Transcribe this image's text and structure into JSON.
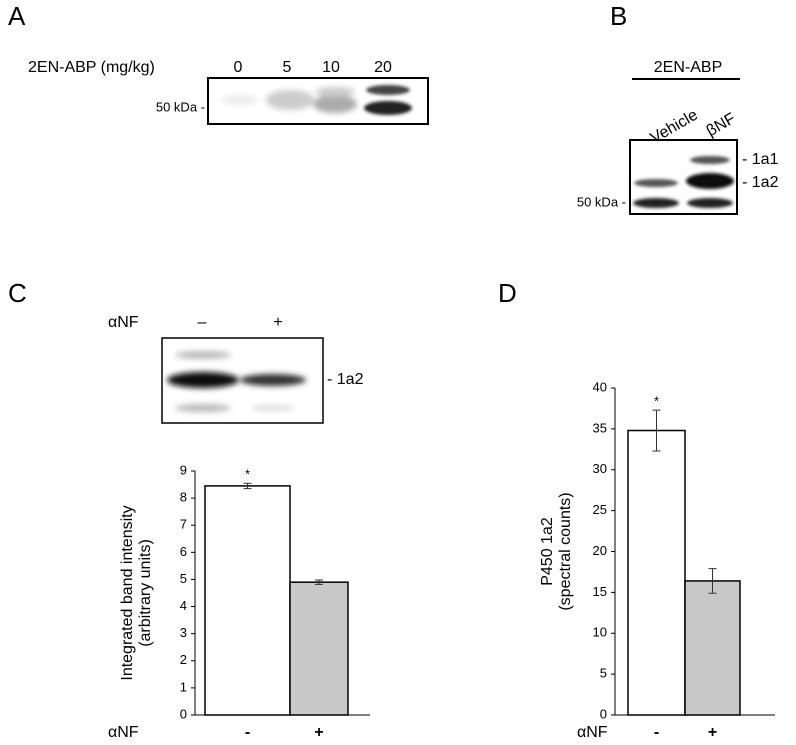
{
  "panel_a": {
    "letter": "A",
    "label": "2EN-ABP  (mg/kg)",
    "lanes": [
      "0",
      "5",
      "10",
      "20"
    ],
    "marker": "50 kDa -"
  },
  "panel_b": {
    "letter": "B",
    "label": "2EN-ABP",
    "lanes": [
      "Vehicle",
      "βNF"
    ],
    "bands": [
      "- 1a1",
      "- 1a2"
    ],
    "marker": "50 kDa -"
  },
  "panel_c": {
    "letter": "C",
    "treatment": "αNF",
    "lanes": [
      "–",
      "+"
    ],
    "band": "- 1a2"
  },
  "panel_d": {
    "letter": "D"
  },
  "chart_data": [
    {
      "type": "bar",
      "ylabel": [
        "Integrated band intensity",
        "(arbitrary units)"
      ],
      "xlabel": "αNF",
      "categories": [
        "-",
        "+"
      ],
      "values": [
        8.45,
        4.9
      ],
      "errors": [
        0.1,
        0.08
      ],
      "colors": [
        "#ffffff",
        "#c8c8c8"
      ],
      "annotation": "*",
      "ylim": [
        0,
        9
      ],
      "yticks": [
        0,
        1,
        2,
        3,
        4,
        5,
        6,
        7,
        8,
        9
      ]
    },
    {
      "type": "bar",
      "ylabel": [
        "P450 1a2",
        "(spectral counts)"
      ],
      "xlabel": "αNF",
      "categories": [
        "-",
        "+"
      ],
      "values": [
        34.8,
        16.4
      ],
      "errors": [
        2.5,
        1.5
      ],
      "colors": [
        "#ffffff",
        "#c8c8c8"
      ],
      "annotation": "*",
      "ylim": [
        0,
        40
      ],
      "yticks": [
        0,
        5,
        10,
        15,
        20,
        25,
        30,
        35,
        40
      ]
    }
  ]
}
